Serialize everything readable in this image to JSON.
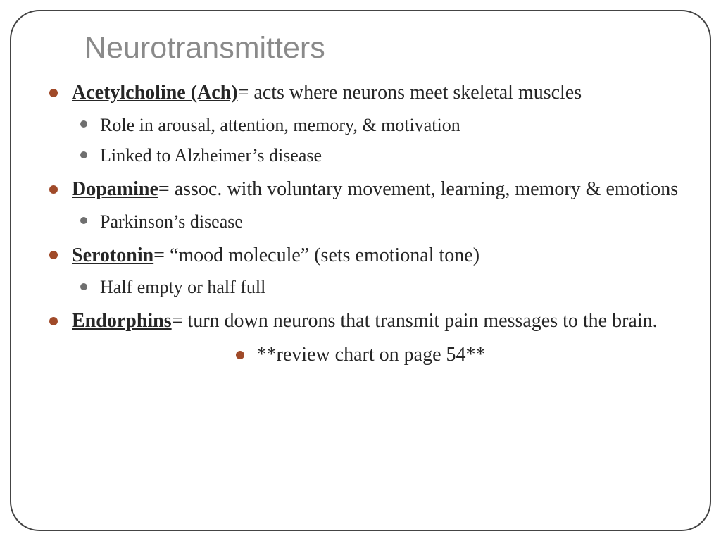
{
  "title": "Neurotransmitters",
  "colors": {
    "title_text": "#8a8a8a",
    "body_text": "#262626",
    "bullet_l1": "#a04a29",
    "bullet_l2": "#6f6f6f",
    "frame_border": "#444444",
    "background": "#ffffff"
  },
  "typography": {
    "title_fontsize_pt": 32,
    "l1_fontsize_pt": 21,
    "l2_fontsize_pt": 20,
    "title_family": "sans-serif-light",
    "body_family": "serif"
  },
  "items": [
    {
      "term": "Acetylcholine (Ach)",
      "definition": "= acts where neurons meet skeletal muscles",
      "sub": [
        "Role in arousal, attention, memory, & motivation",
        "Linked to Alzheimer’s disease"
      ]
    },
    {
      "term": "Dopamine",
      "definition": "= assoc. with voluntary movement, learning, memory & emotions",
      "sub": [
        "Parkinson’s disease"
      ]
    },
    {
      "term": "Serotonin",
      "definition": "= “mood molecule” (sets emotional tone)",
      "sub": [
        "Half empty or half full"
      ]
    },
    {
      "term": "Endorphins",
      "definition": "= turn down neurons that transmit pain messages to the brain.",
      "sub": []
    }
  ],
  "footer_note": "**review chart on page 54**"
}
